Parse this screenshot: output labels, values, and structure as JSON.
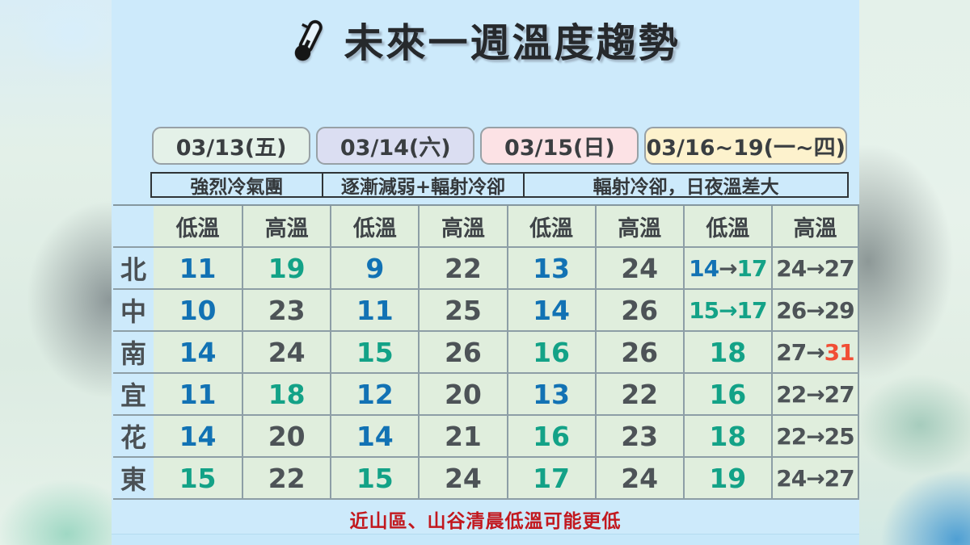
{
  "title": {
    "text": "未來一週溫度趨勢",
    "icon": "thermometer-icon"
  },
  "date_headers": [
    {
      "label": "03/13(五)",
      "bg": "#e4f1e8"
    },
    {
      "label": "03/14(六)",
      "bg": "#dbdef2"
    },
    {
      "label": "03/15(日)",
      "bg": "#fce2e5"
    },
    {
      "label": "03/16~19(一~四)",
      "bg": "#fdf2cd"
    }
  ],
  "condition_band": [
    {
      "label": "強烈冷氣團"
    },
    {
      "label": "逐漸減弱+輻射冷卻"
    },
    {
      "label": "輻射冷卻，日夜溫差大"
    }
  ],
  "table": {
    "col_headers": [
      "低溫",
      "高溫",
      "低溫",
      "高溫",
      "低溫",
      "高溫",
      "低溫",
      "高溫"
    ],
    "rows": [
      {
        "region": "北",
        "cells": [
          [
            [
              "11",
              "blue"
            ]
          ],
          [
            [
              "19",
              "teal"
            ]
          ],
          [
            [
              "9",
              "blue"
            ]
          ],
          [
            [
              "22",
              "gray"
            ]
          ],
          [
            [
              "13",
              "blue"
            ]
          ],
          [
            [
              "24",
              "gray"
            ]
          ],
          [
            [
              "14",
              "blue"
            ],
            [
              "→",
              "gray"
            ],
            [
              "17",
              "teal"
            ]
          ],
          [
            [
              "24",
              "gray"
            ],
            [
              "→",
              "gray"
            ],
            [
              "27",
              "gray"
            ]
          ]
        ]
      },
      {
        "region": "中",
        "cells": [
          [
            [
              "10",
              "blue"
            ]
          ],
          [
            [
              "23",
              "gray"
            ]
          ],
          [
            [
              "11",
              "blue"
            ]
          ],
          [
            [
              "25",
              "gray"
            ]
          ],
          [
            [
              "14",
              "blue"
            ]
          ],
          [
            [
              "26",
              "gray"
            ]
          ],
          [
            [
              "15",
              "teal"
            ],
            [
              "→",
              "teal"
            ],
            [
              "17",
              "teal"
            ]
          ],
          [
            [
              "26",
              "gray"
            ],
            [
              "→",
              "gray"
            ],
            [
              "29",
              "gray"
            ]
          ]
        ]
      },
      {
        "region": "南",
        "cells": [
          [
            [
              "14",
              "blue"
            ]
          ],
          [
            [
              "24",
              "gray"
            ]
          ],
          [
            [
              "15",
              "teal"
            ]
          ],
          [
            [
              "26",
              "gray"
            ]
          ],
          [
            [
              "16",
              "teal"
            ]
          ],
          [
            [
              "26",
              "gray"
            ]
          ],
          [
            [
              "18",
              "teal"
            ]
          ],
          [
            [
              "27",
              "gray"
            ],
            [
              "→",
              "gray"
            ],
            [
              "31",
              "orange"
            ]
          ]
        ]
      },
      {
        "region": "宜",
        "cells": [
          [
            [
              "11",
              "blue"
            ]
          ],
          [
            [
              "18",
              "teal"
            ]
          ],
          [
            [
              "12",
              "blue"
            ]
          ],
          [
            [
              "20",
              "gray"
            ]
          ],
          [
            [
              "13",
              "blue"
            ]
          ],
          [
            [
              "22",
              "gray"
            ]
          ],
          [
            [
              "16",
              "teal"
            ]
          ],
          [
            [
              "22",
              "gray"
            ],
            [
              "→",
              "gray"
            ],
            [
              "27",
              "gray"
            ]
          ]
        ]
      },
      {
        "region": "花",
        "cells": [
          [
            [
              "14",
              "blue"
            ]
          ],
          [
            [
              "20",
              "gray"
            ]
          ],
          [
            [
              "14",
              "blue"
            ]
          ],
          [
            [
              "21",
              "gray"
            ]
          ],
          [
            [
              "16",
              "teal"
            ]
          ],
          [
            [
              "23",
              "gray"
            ]
          ],
          [
            [
              "18",
              "teal"
            ]
          ],
          [
            [
              "22",
              "gray"
            ],
            [
              "→",
              "gray"
            ],
            [
              "25",
              "gray"
            ]
          ]
        ]
      },
      {
        "region": "東",
        "cells": [
          [
            [
              "15",
              "teal"
            ]
          ],
          [
            [
              "22",
              "gray"
            ]
          ],
          [
            [
              "15",
              "teal"
            ]
          ],
          [
            [
              "24",
              "gray"
            ]
          ],
          [
            [
              "17",
              "teal"
            ]
          ],
          [
            [
              "24",
              "gray"
            ]
          ],
          [
            [
              "19",
              "teal"
            ]
          ],
          [
            [
              "24",
              "gray"
            ],
            [
              "→",
              "gray"
            ],
            [
              "27",
              "gray"
            ]
          ]
        ]
      }
    ]
  },
  "footnote": "近山區、山谷清晨低溫可能更低",
  "colors": {
    "blue": "#1272b4",
    "teal": "#13a287",
    "gray": "#4d5357",
    "orange": "#f14e35",
    "note_red": "#c2181e",
    "page_bg": "#cdeafb",
    "table_bg": "#e0eedd"
  }
}
